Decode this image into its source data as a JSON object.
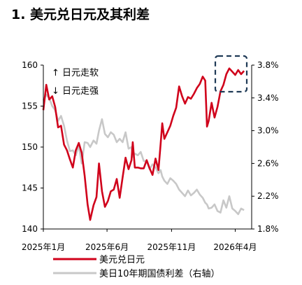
{
  "title": "1. 美元兑日元及其利差",
  "chart_data": {
    "type": "line",
    "x_range": [
      "2025-01-01",
      "2026-05-10"
    ],
    "x_tick_labels": [
      {
        "label": "2025年1月",
        "date": "2025-01-01"
      },
      {
        "label": "2025年6月",
        "date": "2025-06-01"
      },
      {
        "label": "2025年11月",
        "date": "2025-11-01"
      },
      {
        "label": "2026年4月",
        "date": "2026-04-01"
      }
    ],
    "y_left": {
      "range": [
        140,
        160
      ],
      "ticks": [
        "140",
        "145",
        "150",
        "155",
        "160"
      ]
    },
    "y_right": {
      "range": [
        1.8,
        3.8
      ],
      "ticks": [
        "1.8%",
        "2.2%",
        "2.6%",
        "3.0%",
        "3.4%",
        "3.8%"
      ]
    },
    "annotations": [
      "↑ 日元走软",
      "↓ 日元走强"
    ],
    "legend_placement": "bottom",
    "series": [
      {
        "name": "美元兑日元",
        "axis": "left",
        "color": "#d0021b",
        "points": [
          [
            "2025-01-01",
            154.5
          ],
          [
            "2025-01-08",
            157.6
          ],
          [
            "2025-01-15",
            155.8
          ],
          [
            "2025-01-22",
            156.2
          ],
          [
            "2025-01-29",
            154.9
          ],
          [
            "2025-02-05",
            152.4
          ],
          [
            "2025-02-12",
            152.6
          ],
          [
            "2025-02-19",
            150.3
          ],
          [
            "2025-02-26",
            149.6
          ],
          [
            "2025-03-05",
            148.5
          ],
          [
            "2025-03-12",
            147.5
          ],
          [
            "2025-03-19",
            149.6
          ],
          [
            "2025-03-26",
            150.5
          ],
          [
            "2025-04-02",
            149.3
          ],
          [
            "2025-04-09",
            146.5
          ],
          [
            "2025-04-16",
            143.0
          ],
          [
            "2025-04-22",
            141.1
          ],
          [
            "2025-04-30",
            142.9
          ],
          [
            "2025-05-07",
            143.9
          ],
          [
            "2025-05-13",
            148.0
          ],
          [
            "2025-05-20",
            144.6
          ],
          [
            "2025-05-27",
            142.7
          ],
          [
            "2025-06-03",
            143.4
          ],
          [
            "2025-06-10",
            144.6
          ],
          [
            "2025-06-17",
            144.8
          ],
          [
            "2025-06-24",
            146.1
          ],
          [
            "2025-07-01",
            143.8
          ],
          [
            "2025-07-08",
            146.3
          ],
          [
            "2025-07-15",
            148.7
          ],
          [
            "2025-07-22",
            147.3
          ],
          [
            "2025-07-29",
            148.4
          ],
          [
            "2025-08-01",
            150.6
          ],
          [
            "2025-08-06",
            147.5
          ],
          [
            "2025-08-13",
            147.5
          ],
          [
            "2025-08-20",
            147.4
          ],
          [
            "2025-08-27",
            147.4
          ],
          [
            "2025-09-03",
            148.4
          ],
          [
            "2025-09-10",
            147.4
          ],
          [
            "2025-09-17",
            146.6
          ],
          [
            "2025-09-24",
            148.6
          ],
          [
            "2025-10-01",
            147.2
          ],
          [
            "2025-10-06",
            150.3
          ],
          [
            "2025-10-10",
            152.9
          ],
          [
            "2025-10-15",
            151.0
          ],
          [
            "2025-10-22",
            151.8
          ],
          [
            "2025-10-29",
            152.6
          ],
          [
            "2025-11-05",
            153.8
          ],
          [
            "2025-11-12",
            154.8
          ],
          [
            "2025-11-19",
            157.4
          ],
          [
            "2025-11-26",
            156.2
          ],
          [
            "2025-12-03",
            155.3
          ],
          [
            "2025-12-10",
            156.1
          ],
          [
            "2025-12-17",
            155.9
          ],
          [
            "2025-12-24",
            156.5
          ],
          [
            "2025-12-31",
            157.2
          ],
          [
            "2026-01-07",
            157.7
          ],
          [
            "2026-01-14",
            158.6
          ],
          [
            "2026-01-20",
            158.1
          ],
          [
            "2026-01-24",
            152.5
          ],
          [
            "2026-01-28",
            153.2
          ],
          [
            "2026-02-04",
            155.4
          ],
          [
            "2026-02-11",
            153.6
          ],
          [
            "2026-02-18",
            154.9
          ],
          [
            "2026-02-25",
            156.8
          ],
          [
            "2026-03-04",
            157.6
          ],
          [
            "2026-03-11",
            158.9
          ],
          [
            "2026-03-18",
            159.6
          ],
          [
            "2026-03-25",
            159.2
          ],
          [
            "2026-04-01",
            158.8
          ],
          [
            "2026-04-08",
            159.4
          ],
          [
            "2026-04-15",
            158.9
          ],
          [
            "2026-04-22",
            159.3
          ]
        ]
      },
      {
        "name": "美日10年期国债利差（右轴）",
        "axis": "right",
        "color": "#c8c8c8",
        "points": [
          [
            "2025-01-01",
            3.37
          ],
          [
            "2025-01-08",
            3.44
          ],
          [
            "2025-01-15",
            3.4
          ],
          [
            "2025-01-22",
            3.3
          ],
          [
            "2025-01-29",
            3.25
          ],
          [
            "2025-02-05",
            3.12
          ],
          [
            "2025-02-12",
            3.18
          ],
          [
            "2025-02-19",
            3.06
          ],
          [
            "2025-02-26",
            2.88
          ],
          [
            "2025-03-05",
            2.75
          ],
          [
            "2025-03-12",
            2.76
          ],
          [
            "2025-03-19",
            2.7
          ],
          [
            "2025-03-26",
            2.82
          ],
          [
            "2025-04-02",
            2.6
          ],
          [
            "2025-04-09",
            2.86
          ],
          [
            "2025-04-16",
            2.85
          ],
          [
            "2025-04-22",
            2.8
          ],
          [
            "2025-04-30",
            2.88
          ],
          [
            "2025-05-07",
            2.84
          ],
          [
            "2025-05-13",
            3.0
          ],
          [
            "2025-05-20",
            3.14
          ],
          [
            "2025-05-27",
            2.96
          ],
          [
            "2025-06-03",
            2.92
          ],
          [
            "2025-06-10",
            2.98
          ],
          [
            "2025-06-17",
            2.95
          ],
          [
            "2025-06-24",
            2.86
          ],
          [
            "2025-07-01",
            2.9
          ],
          [
            "2025-07-08",
            2.86
          ],
          [
            "2025-07-15",
            2.98
          ],
          [
            "2025-07-22",
            2.78
          ],
          [
            "2025-07-29",
            2.8
          ],
          [
            "2025-08-01",
            2.68
          ],
          [
            "2025-08-06",
            2.72
          ],
          [
            "2025-08-13",
            2.7
          ],
          [
            "2025-08-20",
            2.74
          ],
          [
            "2025-08-27",
            2.63
          ],
          [
            "2025-09-03",
            2.63
          ],
          [
            "2025-09-10",
            2.53
          ],
          [
            "2025-09-17",
            2.59
          ],
          [
            "2025-09-24",
            2.55
          ],
          [
            "2025-10-01",
            2.48
          ],
          [
            "2025-10-06",
            2.52
          ],
          [
            "2025-10-10",
            2.44
          ],
          [
            "2025-10-15",
            2.39
          ],
          [
            "2025-10-22",
            2.35
          ],
          [
            "2025-10-29",
            2.42
          ],
          [
            "2025-11-05",
            2.39
          ],
          [
            "2025-11-12",
            2.35
          ],
          [
            "2025-11-19",
            2.28
          ],
          [
            "2025-11-26",
            2.24
          ],
          [
            "2025-12-03",
            2.2
          ],
          [
            "2025-12-10",
            2.27
          ],
          [
            "2025-12-17",
            2.21
          ],
          [
            "2025-12-24",
            2.24
          ],
          [
            "2025-12-31",
            2.28
          ],
          [
            "2026-01-07",
            2.22
          ],
          [
            "2026-01-14",
            2.18
          ],
          [
            "2026-01-20",
            2.12
          ],
          [
            "2026-01-24",
            2.1
          ],
          [
            "2026-01-28",
            2.05
          ],
          [
            "2026-02-04",
            2.06
          ],
          [
            "2026-02-11",
            2.1
          ],
          [
            "2026-02-18",
            2.02
          ],
          [
            "2026-02-25",
            2.0
          ],
          [
            "2026-03-04",
            2.15
          ],
          [
            "2026-03-11",
            2.06
          ],
          [
            "2026-03-18",
            2.2
          ],
          [
            "2026-03-25",
            2.05
          ],
          [
            "2026-04-01",
            2.02
          ],
          [
            "2026-04-08",
            1.98
          ],
          [
            "2026-04-15",
            2.05
          ],
          [
            "2026-04-22",
            2.03
          ]
        ]
      }
    ]
  }
}
